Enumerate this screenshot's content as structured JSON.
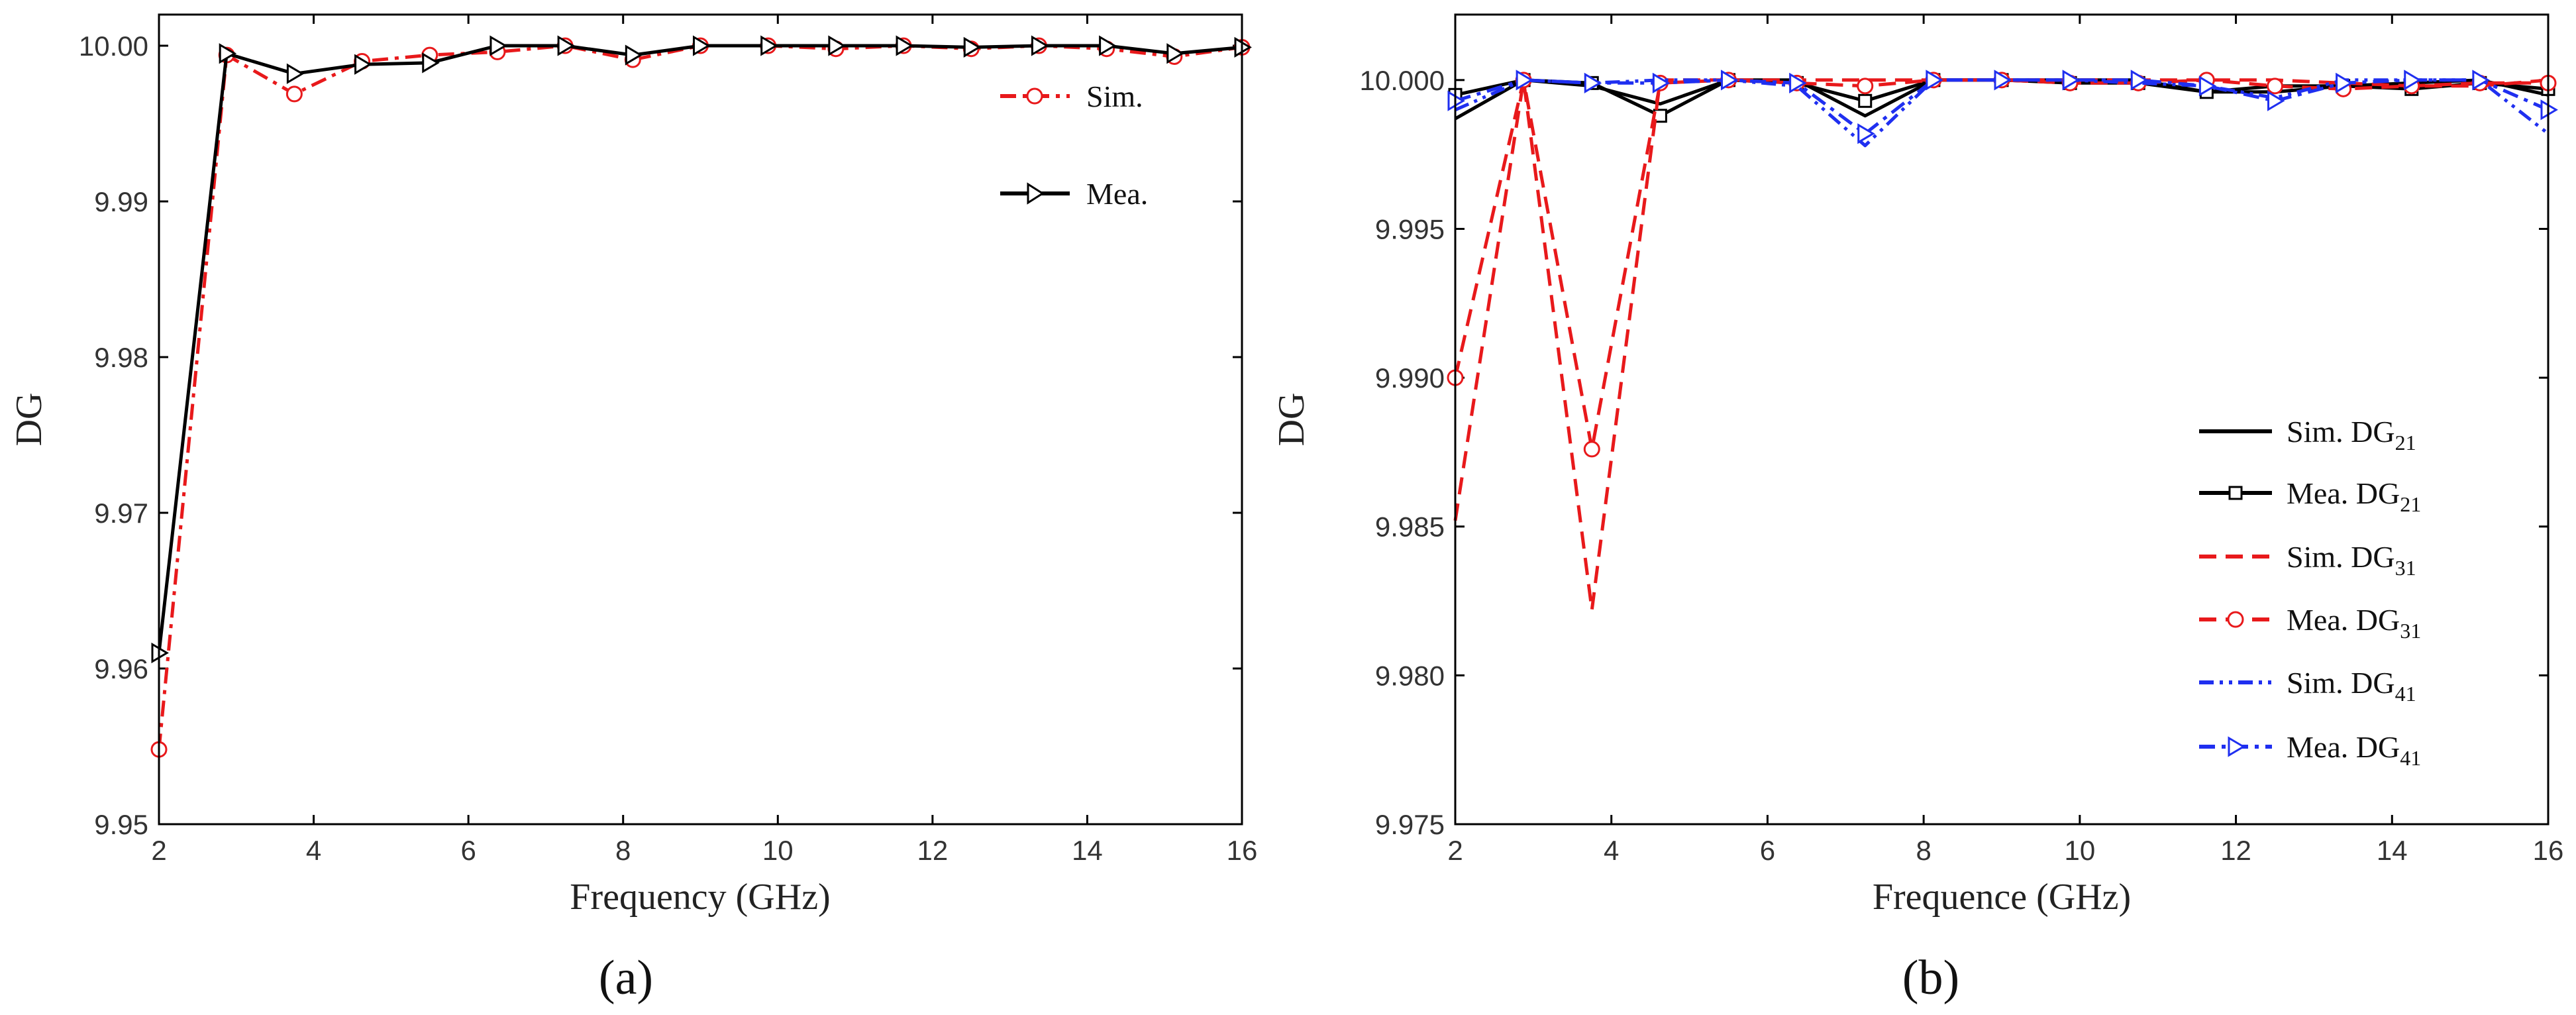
{
  "chart_data": [
    {
      "panel_label": "(a)",
      "type": "line",
      "xlabel": "Frequency (GHz)",
      "ylabel": "DG",
      "xlim": [
        2,
        16
      ],
      "ylim": [
        9.95,
        10.002
      ],
      "xticks": [
        2,
        4,
        6,
        8,
        10,
        12,
        14,
        16
      ],
      "xtick_labels": [
        "2",
        "4",
        "6",
        "8",
        "10",
        "12",
        "14",
        "16"
      ],
      "yticks": [
        9.95,
        9.96,
        9.97,
        9.98,
        9.99,
        10.0
      ],
      "ytick_labels": [
        "9.95",
        "9.96",
        "9.97",
        "9.98",
        "9.99",
        "10.00"
      ],
      "legend_position": "top-right",
      "x": [
        2.0,
        2.875,
        3.75,
        4.625,
        5.5,
        6.375,
        7.25,
        8.125,
        9.0,
        9.875,
        10.75,
        11.625,
        12.5,
        13.375,
        14.25,
        15.125,
        16.0
      ],
      "series": [
        {
          "name": "Sim.",
          "legend": "Sim.",
          "color": "#e8191b",
          "style": "dashdot",
          "marker": "circle",
          "values": [
            9.9548,
            9.9994,
            9.9969,
            9.999,
            9.9994,
            9.9996,
            10.0,
            9.9991,
            10.0,
            10.0,
            9.9998,
            10.0,
            9.9998,
            10.0,
            9.9998,
            9.9993,
            9.9999
          ]
        },
        {
          "name": "Mea.",
          "legend": "Mea.",
          "color": "#000000",
          "style": "solid",
          "marker": "triangle-right",
          "values": [
            9.961,
            9.9995,
            9.9982,
            9.9988,
            9.9989,
            10.0,
            10.0,
            9.9994,
            10.0,
            10.0,
            10.0,
            10.0,
            9.9999,
            10.0,
            10.0,
            9.9995,
            9.9999
          ]
        }
      ]
    },
    {
      "panel_label": "(b)",
      "type": "line",
      "xlabel": "Frequence (GHz)",
      "ylabel": "DG",
      "xlim": [
        2,
        16
      ],
      "ylim": [
        9.975,
        10.0022
      ],
      "xticks": [
        2,
        4,
        6,
        8,
        10,
        12,
        14,
        16
      ],
      "xtick_labels": [
        "2",
        "4",
        "6",
        "8",
        "10",
        "12",
        "14",
        "16"
      ],
      "yticks": [
        9.975,
        9.98,
        9.985,
        9.99,
        9.995,
        10.0
      ],
      "ytick_labels": [
        "9.975",
        "9.980",
        "9.985",
        "9.990",
        "9.995",
        "10.000"
      ],
      "legend_position": "bottom-right",
      "x": [
        2.0,
        2.875,
        3.75,
        4.625,
        5.5,
        6.375,
        7.25,
        8.125,
        9.0,
        9.875,
        10.75,
        11.625,
        12.5,
        13.375,
        14.25,
        15.125,
        16.0
      ],
      "series": [
        {
          "name": "Sim. DG21",
          "legend_main": "Sim. DG",
          "legend_sub": "21",
          "color": "#000000",
          "style": "solid",
          "marker": "none",
          "values": [
            9.9987,
            10.0,
            9.9998,
            9.9992,
            10.0,
            10.0,
            9.9988,
            10.0,
            10.0,
            10.0,
            10.0,
            9.9996,
            9.9996,
            9.9998,
            9.9999,
            10.0,
            9.9995
          ]
        },
        {
          "name": "Mea. DG21",
          "legend_main": "Mea. DG",
          "legend_sub": "21",
          "color": "#000000",
          "style": "solid",
          "marker": "square",
          "values": [
            9.9995,
            10.0,
            9.9999,
            9.9988,
            10.0,
            9.9999,
            9.9993,
            10.0,
            10.0,
            9.9999,
            9.9999,
            9.9996,
            9.9998,
            9.9998,
            9.9997,
            9.9999,
            9.9997
          ]
        },
        {
          "name": "Sim. DG31",
          "legend_main": "Sim. DG",
          "legend_sub": "31",
          "color": "#e8191b",
          "style": "dash",
          "marker": "none",
          "values": [
            9.9852,
            10.0,
            9.9822,
            10.0,
            10.0,
            10.0,
            10.0,
            10.0,
            10.0,
            10.0,
            10.0,
            10.0,
            10.0,
            9.9999,
            9.9998,
            9.9998,
            10.0
          ]
        },
        {
          "name": "Mea. DG31",
          "legend_main": "Mea. DG",
          "legend_sub": "31",
          "color": "#e8191b",
          "style": "dash",
          "marker": "circle",
          "values": [
            9.99,
            10.0,
            9.9876,
            9.9999,
            10.0,
            9.9999,
            9.9998,
            10.0,
            10.0,
            9.9999,
            9.9999,
            10.0,
            9.9998,
            9.9997,
            9.9998,
            9.9999,
            9.9999
          ]
        },
        {
          "name": "Sim. DG41",
          "legend_main": "Sim. DG",
          "legend_sub": "41",
          "color": "#1f2ff0",
          "style": "dashdotdot",
          "marker": "none",
          "values": [
            9.999,
            10.0,
            9.9999,
            10.0,
            10.0,
            9.9998,
            9.9978,
            10.0,
            10.0,
            10.0,
            9.9999,
            9.9998,
            9.9994,
            10.0,
            10.0,
            10.0,
            9.9982
          ]
        },
        {
          "name": "Mea. DG41",
          "legend_main": "Mea. DG",
          "legend_sub": "41",
          "color": "#1f2ff0",
          "style": "dashdot",
          "marker": "triangle-right",
          "values": [
            9.9993,
            10.0,
            9.9999,
            9.9999,
            10.0,
            9.9999,
            9.9982,
            10.0,
            10.0,
            10.0,
            10.0,
            9.9998,
            9.9993,
            9.9999,
            10.0,
            10.0,
            9.999
          ]
        }
      ]
    }
  ]
}
